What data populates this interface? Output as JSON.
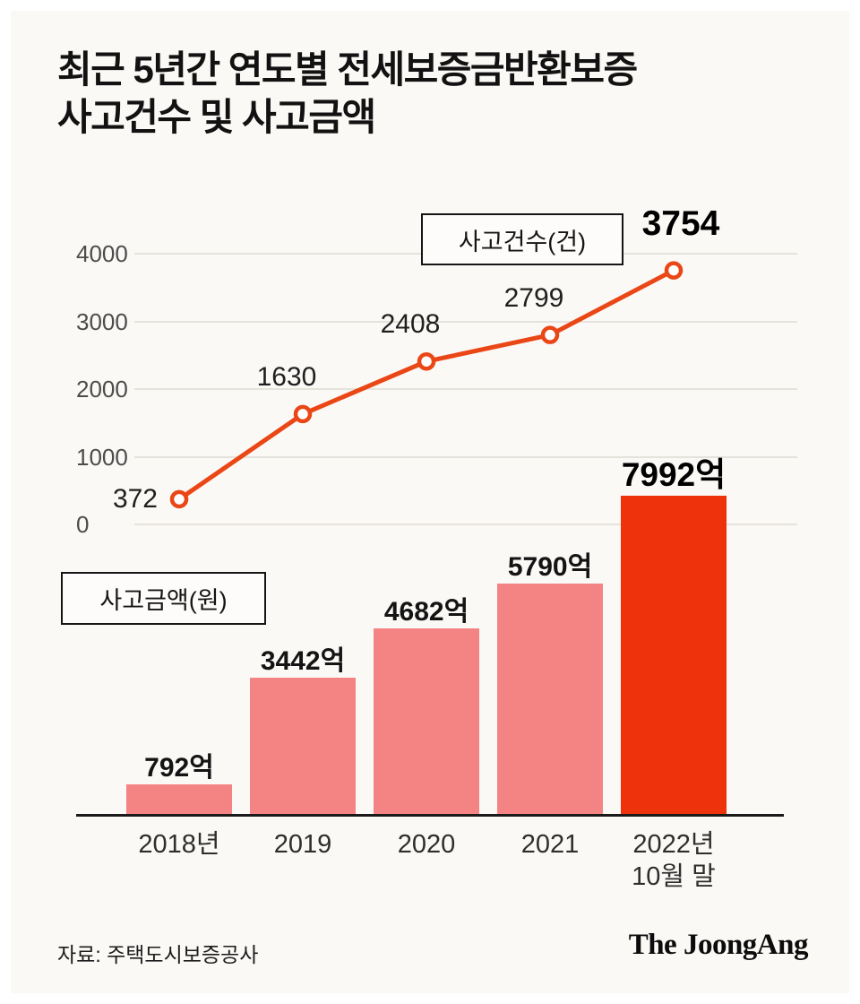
{
  "page": {
    "title": "최근 5년간 연도별 전세보증금반환보증\n사고건수 및 사고금액",
    "source": "자료: 주택도시보증공사",
    "logo": "The JoongAng"
  },
  "chart_data": {
    "type": "combo",
    "categories": [
      "2018년",
      "2019",
      "2020",
      "2021",
      "2022년\n10월 말"
    ],
    "line_series": {
      "name": "사고건수(건)",
      "type": "line",
      "values": [
        372,
        1630,
        2408,
        2799,
        3754
      ],
      "color": "#ea4616",
      "marker": "open-circle",
      "axis_ticks": [
        0,
        1000,
        2000,
        3000,
        4000
      ],
      "ylim": [
        0,
        4000
      ]
    },
    "bar_series": {
      "name": "사고금액(원)",
      "type": "bar",
      "values": [
        792,
        3442,
        4682,
        5790,
        7992
      ],
      "labels": [
        "792억",
        "3442억",
        "4682억",
        "5790억",
        "7992억"
      ],
      "unit": "억",
      "color": "#f48384",
      "highlight_color": "#ee320c",
      "highlight_index": 4
    },
    "grid": "horizontal",
    "legend_position": "inside"
  }
}
